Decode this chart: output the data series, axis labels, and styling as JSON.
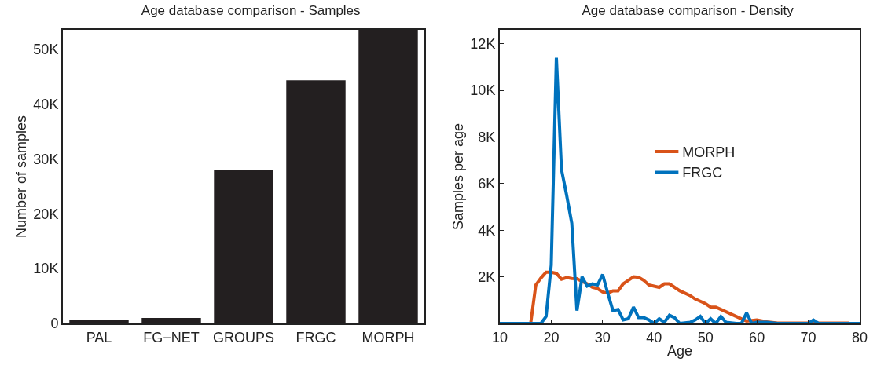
{
  "chart_data": [
    {
      "type": "bar",
      "title": "Age database comparison - Samples",
      "ylabel": "Number of samples",
      "categories": [
        "PAL",
        "FG−NET",
        "GROUPS",
        "FRGC",
        "MORPH"
      ],
      "values": [
        600,
        1000,
        28000,
        44300,
        53500
      ],
      "color": "#231f20",
      "ylim": [
        0,
        53500
      ],
      "yticks": [
        0,
        {
          "value": 10000,
          "label": "10K"
        },
        {
          "value": 20000,
          "label": "20K"
        },
        {
          "value": 30000,
          "label": "30K"
        },
        {
          "value": 40000,
          "label": "40K"
        },
        {
          "value": 50000,
          "label": "50K"
        }
      ],
      "grid": "y",
      "legend": false
    },
    {
      "type": "line",
      "title": "Age database comparison - Density",
      "xlabel": "Age",
      "ylabel": "Samples per age",
      "legend": "right",
      "xlim": [
        10,
        80
      ],
      "xticks": [
        10,
        20,
        30,
        40,
        50,
        60,
        70,
        80
      ],
      "ylim": [
        0,
        12600
      ],
      "yticks": [
        {
          "value": 2000,
          "label": "2K"
        },
        {
          "value": 4000,
          "label": "4K"
        },
        {
          "value": 6000,
          "label": "6K"
        },
        {
          "value": 8000,
          "label": "8K"
        },
        {
          "value": 10000,
          "label": "10K"
        },
        {
          "value": 12000,
          "label": "12K"
        }
      ],
      "marker": "none",
      "line_style": "solid",
      "series": [
        {
          "name": "MORPH",
          "color": "#d95319",
          "x": [
            10,
            16,
            17,
            18,
            19,
            20,
            21,
            22,
            23,
            24,
            25,
            26,
            27,
            28,
            29,
            30,
            31,
            32,
            33,
            34,
            35,
            36,
            37,
            38,
            39,
            40,
            41,
            42,
            43,
            44,
            45,
            46,
            47,
            48,
            49,
            50,
            51,
            52,
            53,
            54,
            55,
            56,
            57,
            58,
            60,
            62,
            64,
            70,
            75,
            78
          ],
          "values": [
            0,
            0,
            1650,
            1950,
            2200,
            2200,
            2150,
            1900,
            1970,
            1930,
            1920,
            1800,
            1700,
            1550,
            1500,
            1350,
            1300,
            1400,
            1400,
            1700,
            1850,
            2000,
            1980,
            1850,
            1650,
            1600,
            1550,
            1700,
            1700,
            1550,
            1400,
            1300,
            1200,
            1050,
            950,
            850,
            700,
            700,
            600,
            500,
            400,
            300,
            200,
            100,
            150,
            70,
            20,
            20,
            20,
            20
          ]
        },
        {
          "name": "FRGC",
          "color": "#0072bd",
          "x": [
            10,
            18,
            19,
            20,
            21,
            22,
            23,
            24,
            25,
            26,
            27,
            28,
            29,
            30,
            31,
            32,
            33,
            34,
            35,
            36,
            37,
            38,
            39,
            40,
            41,
            42,
            43,
            44,
            45,
            47,
            48,
            49,
            50,
            51,
            52,
            53,
            54,
            56,
            57,
            58,
            59,
            60,
            62,
            64,
            70,
            71,
            72,
            80
          ],
          "values": [
            0,
            0,
            300,
            2500,
            11400,
            6600,
            5500,
            4300,
            550,
            2000,
            1600,
            1700,
            1650,
            2100,
            1300,
            550,
            600,
            150,
            200,
            700,
            250,
            250,
            150,
            0,
            200,
            50,
            350,
            250,
            0,
            50,
            150,
            300,
            0,
            200,
            0,
            300,
            50,
            0,
            0,
            450,
            0,
            50,
            50,
            0,
            0,
            150,
            0,
            0
          ]
        }
      ]
    }
  ]
}
